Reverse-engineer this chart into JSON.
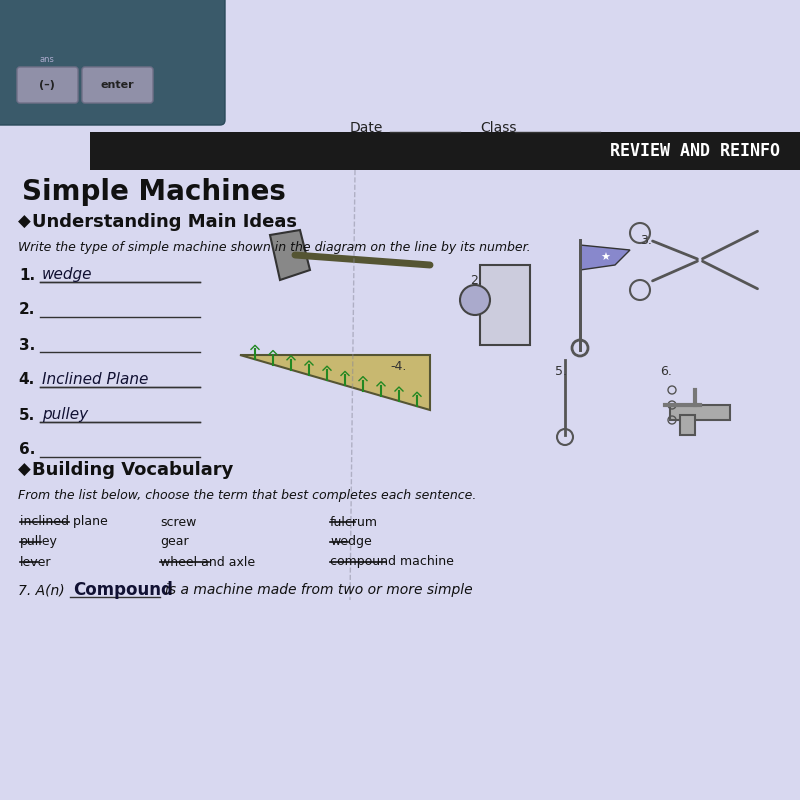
{
  "bg_color": "#d8d8f0",
  "calculator_color": "#3a5a6a",
  "calculator_button_color": "#c8c8d8",
  "header_bar_color": "#1a1a1a",
  "header_text": "REVIEW AND REINFO",
  "title": "Simple Machines",
  "subtitle": "Understanding Main Ideas",
  "instruction": "Write the type of simple machine shown in the diagram on the line by its number.",
  "items": [
    {
      "num": "1.",
      "answer": "wedge",
      "underline": true
    },
    {
      "num": "2.",
      "answer": "",
      "underline": true
    },
    {
      "num": "3.",
      "answer": "",
      "underline": true
    },
    {
      "num": "4.",
      "answer": "Inclined Plane",
      "underline": true
    },
    {
      "num": "5.",
      "answer": "pulley",
      "underline": true
    },
    {
      "num": "6.",
      "answer": "",
      "underline": true
    }
  ],
  "vocab_title": "Building Vocabulary",
  "vocab_instruction": "From the list below, choose the term that best completes each sentence.",
  "vocab_words_left": [
    "inclined plane",
    "pulley",
    "lever"
  ],
  "vocab_words_mid": [
    "screw",
    "gear",
    "wheel and axle"
  ],
  "vocab_words_right": [
    "fulcrum",
    "wedge",
    "compound machine"
  ],
  "question7": "7. A(n)",
  "answer7": "Compound",
  "question7_end": "is a machine made from two or more simple",
  "date_label": "Date",
  "class_label": "Class",
  "diagram_labels": [
    "2.",
    "3.",
    "4.",
    "5.",
    "6."
  ]
}
